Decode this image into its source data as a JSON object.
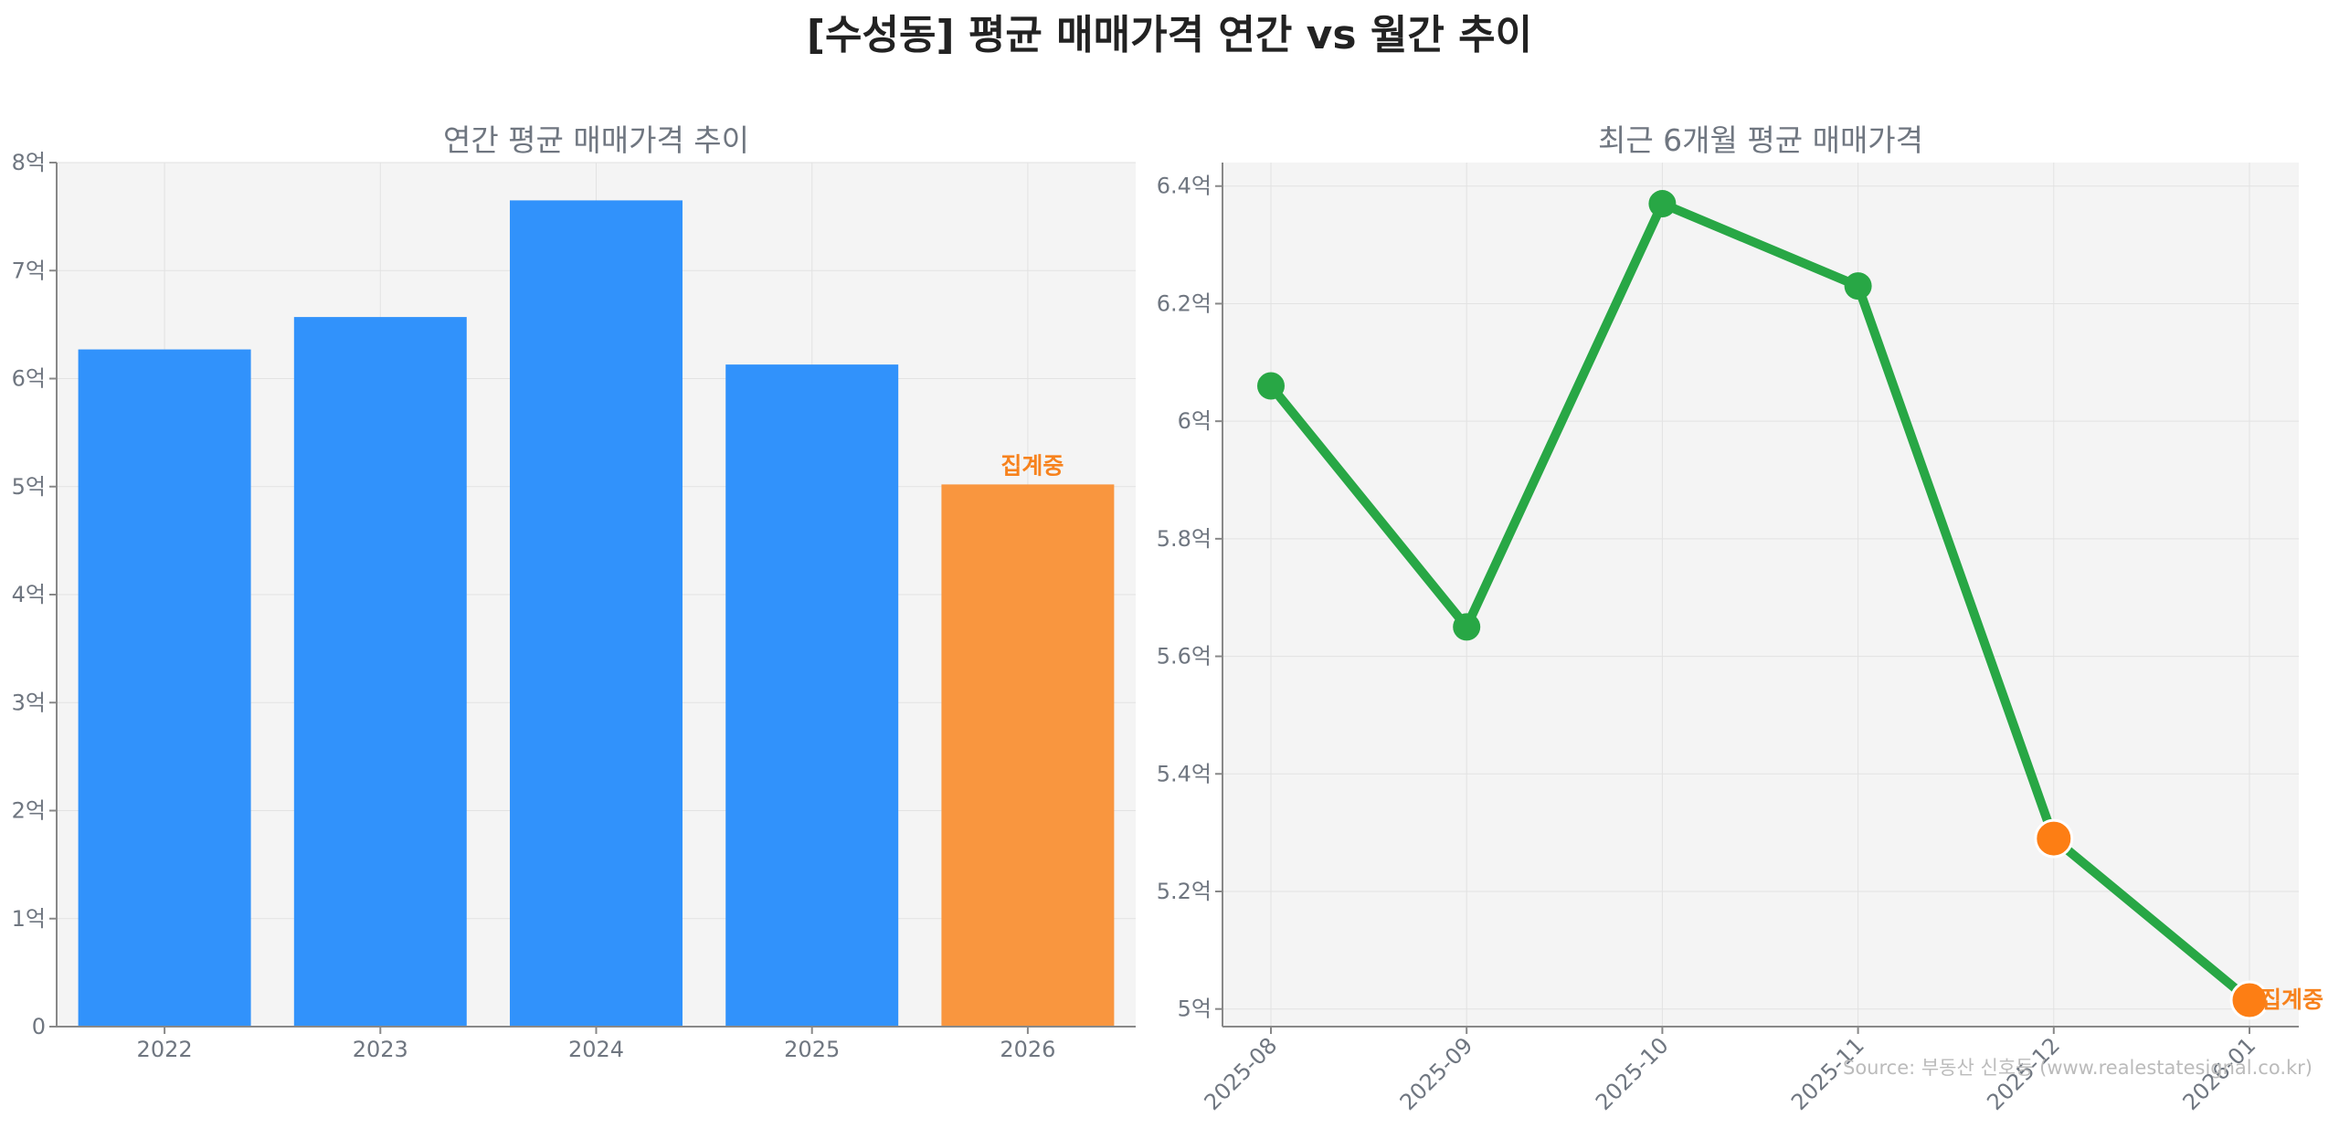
{
  "title": "[수성동] 평균 매매가격 연간 vs 월간 추이",
  "source": "Source: 부동산 신호등 (www.realestatesignal.co.kr)",
  "colors": {
    "bar": "#3192fb",
    "bar_partial": "#f9963f",
    "line": "#28a745",
    "point_partial": "#fd7e14",
    "partial_label": "#f7821d",
    "plot_background": "#f4f4f4"
  },
  "chart_data": [
    {
      "type": "bar",
      "title": "연간 평균 매매가격 추이",
      "categories": [
        "2022",
        "2023",
        "2024",
        "2025",
        "2026"
      ],
      "values": [
        6.27,
        6.57,
        7.65,
        6.13,
        5.02
      ],
      "unit": "억",
      "partial": [
        false,
        false,
        false,
        false,
        true
      ],
      "partial_label": "집계중",
      "ylim": [
        0,
        8
      ],
      "yticks": [
        0,
        1,
        2,
        3,
        4,
        5,
        6,
        7,
        8
      ],
      "ytick_labels": [
        "0",
        "1억",
        "2억",
        "3억",
        "4억",
        "5억",
        "6억",
        "7억",
        "8억"
      ],
      "grid": true
    },
    {
      "type": "line",
      "title": "최근 6개월 평균 매매가격",
      "x": [
        "2025-08",
        "2025-09",
        "2025-10",
        "2025-11",
        "2025-12",
        "2026-01"
      ],
      "values": [
        6.06,
        5.65,
        6.37,
        6.23,
        5.29,
        5.015
      ],
      "unit": "억",
      "partial": [
        false,
        false,
        false,
        false,
        true,
        true
      ],
      "partial_label": "집계중",
      "ylim": [
        4.97,
        6.44
      ],
      "yticks": [
        5.0,
        5.2,
        5.4,
        5.6,
        5.8,
        6.0,
        6.2,
        6.4
      ],
      "ytick_labels": [
        "5억",
        "5.2억",
        "5.4억",
        "5.6억",
        "5.8억",
        "6억",
        "6.2억",
        "6.4억"
      ],
      "grid": true
    }
  ]
}
